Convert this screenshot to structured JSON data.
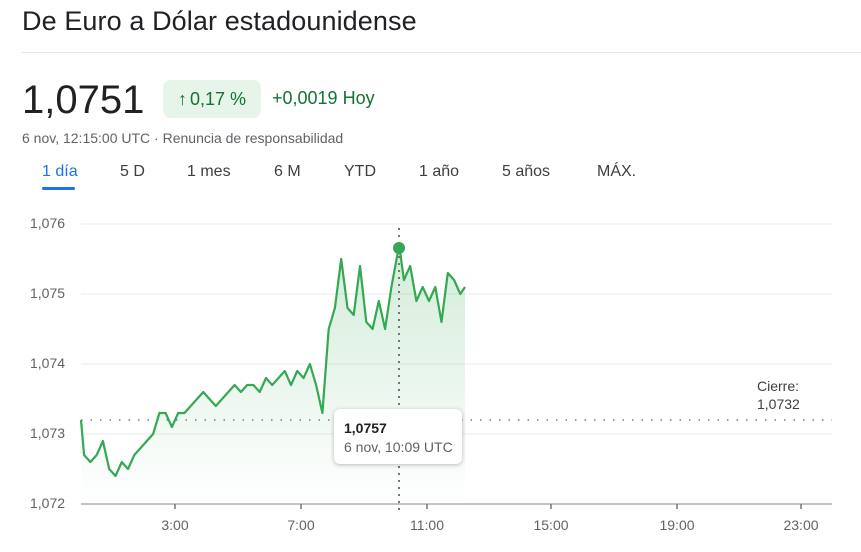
{
  "header": {
    "title": "De Euro a Dólar estadounidense"
  },
  "quote": {
    "price": "1,0751",
    "change_percent": "0,17 %",
    "change_arrow_icon": "arrow-up-icon",
    "change_abs": "+0,0019 Hoy",
    "timestamp": "6 nov, 12:15:00 UTC",
    "separator": " · ",
    "disclaimer_link": "Renuncia de responsabilidad",
    "positive_color": "#137333",
    "pill_bg": "#e6f4ea"
  },
  "tabs": [
    {
      "label": "1 día",
      "active": true
    },
    {
      "label": "5 D",
      "active": false
    },
    {
      "label": "1 mes",
      "active": false
    },
    {
      "label": "6 M",
      "active": false
    },
    {
      "label": "YTD",
      "active": false
    },
    {
      "label": "1 año",
      "active": false
    },
    {
      "label": "5 años",
      "active": false
    },
    {
      "label": "MÁX.",
      "active": false
    }
  ],
  "tooltip": {
    "value": "1,0757",
    "time": "6 nov, 10:09 UTC"
  },
  "close": {
    "label": "Cierre:",
    "value": "1,0732"
  },
  "chart_data": {
    "type": "line",
    "title": "De Euro a Dólar estadounidense (1 día)",
    "xlabel": "",
    "ylabel": "",
    "line_color": "#34a853",
    "fill": "gradient-green",
    "grid": true,
    "legend": "none",
    "ylim": [
      1.072,
      1.076
    ],
    "yticks": [
      "1,072",
      "1,073",
      "1,074",
      "1,075",
      "1,076"
    ],
    "xlim": [
      "0:00",
      "24:00"
    ],
    "xticks": [
      "3:00",
      "7:00",
      "11:00",
      "15:00",
      "19:00",
      "23:00"
    ],
    "reference_line": {
      "label": "Cierre",
      "value": 1.0732,
      "style": "dotted"
    },
    "hover_point": {
      "time": "10:09",
      "value": 1.0757
    },
    "x": [
      0.0,
      0.1,
      0.3,
      0.5,
      0.7,
      0.9,
      1.1,
      1.3,
      1.5,
      1.7,
      1.9,
      2.1,
      2.3,
      2.5,
      2.7,
      2.9,
      3.1,
      3.3,
      3.5,
      3.7,
      3.9,
      4.1,
      4.3,
      4.5,
      4.7,
      4.9,
      5.1,
      5.3,
      5.5,
      5.7,
      5.9,
      6.1,
      6.3,
      6.5,
      6.7,
      6.9,
      7.1,
      7.3,
      7.5,
      7.7,
      7.9,
      8.1,
      8.3,
      8.5,
      8.7,
      8.9,
      9.1,
      9.3,
      9.5,
      9.7,
      9.9,
      10.15,
      10.3,
      10.5,
      10.7,
      10.9,
      11.1,
      11.3,
      11.5,
      11.7,
      11.9,
      12.1,
      12.25
    ],
    "values": [
      1.0732,
      1.0727,
      1.0726,
      1.0727,
      1.0729,
      1.0725,
      1.0724,
      1.0726,
      1.0725,
      1.0727,
      1.0728,
      1.0729,
      1.073,
      1.0733,
      1.0733,
      1.0731,
      1.0733,
      1.0733,
      1.0734,
      1.0735,
      1.0736,
      1.0735,
      1.0734,
      1.0735,
      1.0736,
      1.0737,
      1.0736,
      1.0737,
      1.0737,
      1.0736,
      1.0738,
      1.0737,
      1.0738,
      1.0739,
      1.0737,
      1.0739,
      1.0738,
      1.074,
      1.0737,
      1.0733,
      1.0745,
      1.0748,
      1.0755,
      1.0748,
      1.0747,
      1.0754,
      1.0746,
      1.0745,
      1.0749,
      1.0745,
      1.0751,
      1.0757,
      1.0752,
      1.0754,
      1.0749,
      1.0751,
      1.0749,
      1.0751,
      1.0746,
      1.0753,
      1.0752,
      1.075,
      1.0751
    ]
  }
}
